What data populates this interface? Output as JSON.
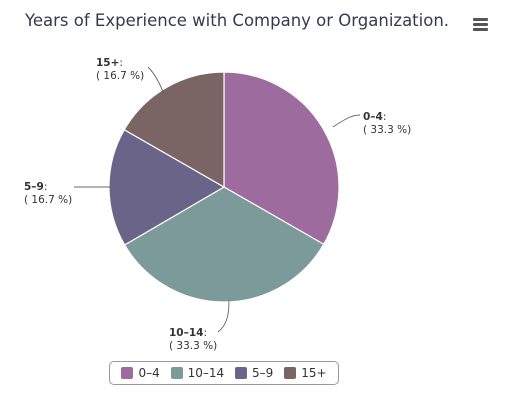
{
  "chart_data": {
    "type": "pie",
    "title": "Years of Experience with Company or Organization.",
    "slices": [
      {
        "label": "0–4",
        "percent_label": "( 33.3 %)",
        "value": 33.3,
        "color": "#9e6b9f"
      },
      {
        "label": "10–14",
        "percent_label": "( 33.3 %)",
        "value": 33.3,
        "color": "#7d9a9a"
      },
      {
        "label": "5–9",
        "percent_label": "( 16.7 %)",
        "value": 16.7,
        "color": "#6a6488"
      },
      {
        "label": "15+",
        "percent_label": "( 16.7 %)",
        "value": 16.7,
        "color": "#7a6464"
      }
    ],
    "legend": [
      "0–4",
      "10–14",
      "5–9",
      "15+"
    ],
    "legend_position": "bottom-center"
  },
  "toolbar": {
    "menu_icon": "hamburger-menu-icon"
  }
}
